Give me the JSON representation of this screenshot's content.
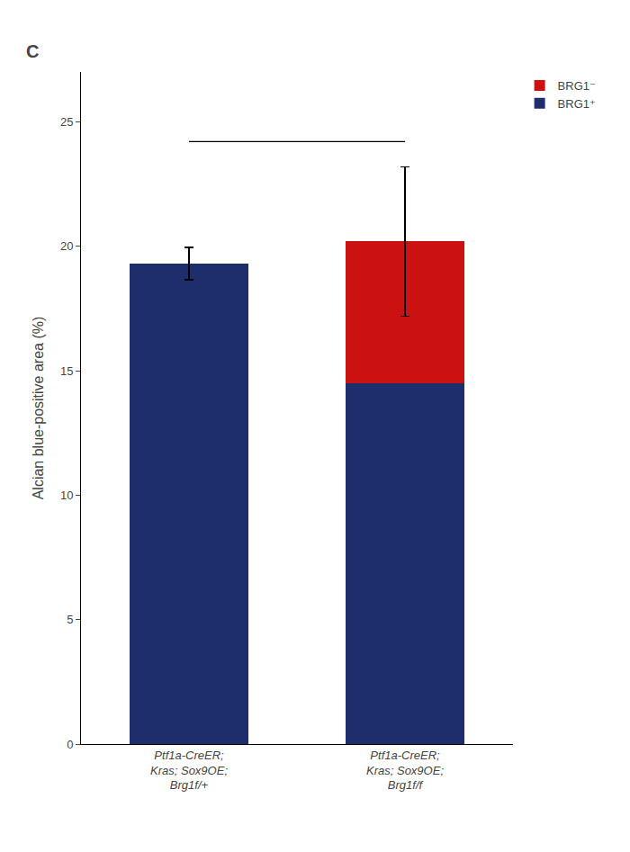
{
  "chart_data": {
    "type": "bar",
    "stacked": true,
    "ylabel": "Alcian blue-positive area (%)",
    "categories": [
      "Ptf1a-CreER;\nKras; Sox9OE;\nBrg1f/+",
      "Ptf1a-CreER;\nKras; Sox9OE;\nBrg1f/f"
    ],
    "series": [
      {
        "name": "BRG1⁺",
        "color": "#1e2d6b",
        "values": [
          19.3,
          14.5
        ]
      },
      {
        "name": "BRG1⁻",
        "color": "#cc1111",
        "values": [
          0,
          5.7
        ]
      }
    ],
    "errors": [
      0.65,
      3.0
    ],
    "significance_line": 24.2,
    "annotations": [
      "C"
    ],
    "ylim": [
      0,
      27
    ],
    "yticks": [
      0,
      5,
      10,
      15,
      20,
      25
    ],
    "grid": false,
    "legend": "upper right"
  }
}
